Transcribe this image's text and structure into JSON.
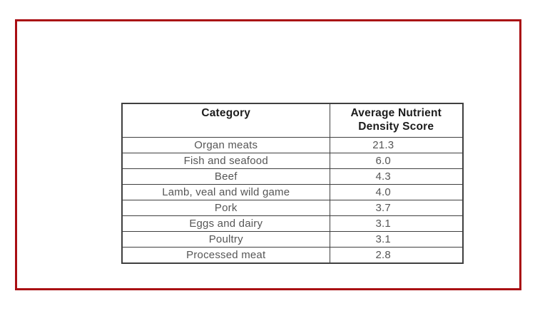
{
  "page": {
    "background_color": "#ffffff",
    "frame_border_color": "#a90e13",
    "grid_line_color": "#3f3f3f",
    "header_text_color": "#1c1c1c",
    "body_text_color": "#565656"
  },
  "table": {
    "col_headers": [
      "Category",
      "Average Nutrient Density Score"
    ],
    "rows": [
      {
        "category": "Organ meats",
        "score": "21.3"
      },
      {
        "category": "Fish and seafood",
        "score": "6.0"
      },
      {
        "category": "Beef",
        "score": "4.3"
      },
      {
        "category": "Lamb, veal and wild game",
        "score": "4.0"
      },
      {
        "category": "Pork",
        "score": "3.7"
      },
      {
        "category": "Eggs and dairy",
        "score": "3.1"
      },
      {
        "category": "Poultry",
        "score": "3.1"
      },
      {
        "category": "Processed meat",
        "score": "2.8"
      }
    ]
  },
  "chart_data": {
    "type": "table",
    "columns": [
      "Category",
      "Average Nutrient Density Score"
    ],
    "rows": [
      [
        "Organ meats",
        21.3
      ],
      [
        "Fish and seafood",
        6.0
      ],
      [
        "Beef",
        4.3
      ],
      [
        "Lamb, veal and wild game",
        4.0
      ],
      [
        "Pork",
        3.7
      ],
      [
        "Eggs and dairy",
        3.1
      ],
      [
        "Poultry",
        3.1
      ],
      [
        "Processed meat",
        2.8
      ]
    ]
  }
}
